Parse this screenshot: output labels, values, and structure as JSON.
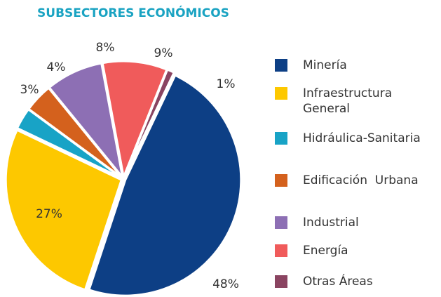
{
  "chart_data": {
    "type": "pie",
    "title": "SUBSECTORES ECONÓMICOS",
    "categories": [
      "Minería",
      "Infraestructura General",
      "Hidráulica-Sanitaria",
      "Edificación  Urbana",
      "Industrial",
      "Energía",
      "Otras Áreas"
    ],
    "values": [
      48,
      27,
      3,
      4,
      8,
      9,
      1
    ],
    "value_labels": [
      "48%",
      "27%",
      "3%",
      "4%",
      "8%",
      "9%",
      "1%"
    ],
    "colors": [
      "#0d3f85",
      "#fdc800",
      "#18a3c6",
      "#d4611d",
      "#8d6fb4",
      "#f05b5b",
      "#8a4461"
    ]
  }
}
